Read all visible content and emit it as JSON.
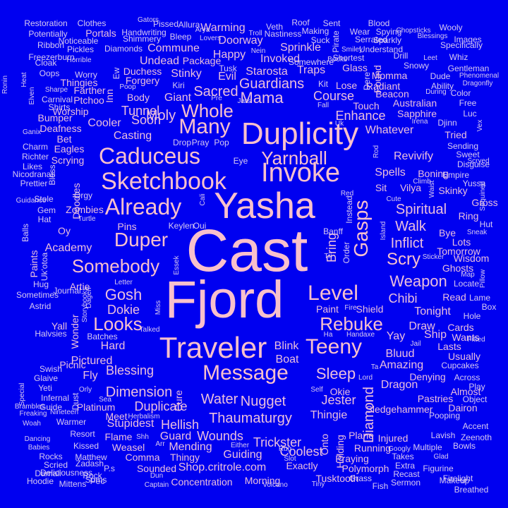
{
  "colors": {
    "background": "#0000f0",
    "word_large": "#f8c0cc",
    "word_medium": "#ebbfdc",
    "word_small": "#d7c8f0"
  },
  "words": [
    "Cast",
    "Fjord",
    "Yasha",
    "Duplicity",
    "Invoke",
    "Traveler",
    "Sketchbook",
    "Caduceus",
    "Message",
    "Teeny",
    "Already",
    "Level",
    "Gasps",
    "Many",
    "Duper",
    "Yarnball",
    "Rebuke",
    "Somebody",
    "Whole",
    "Mama",
    "Scry",
    "Sleep",
    "Looks",
    "Gosh",
    "Weapon",
    "Water",
    "Nugget",
    "Walk",
    "Thaumaturgy",
    "Sacred",
    "Spiritual",
    "Dimension",
    "Duplicate",
    "Guardians",
    "Diamond",
    "Bring",
    "Inflict",
    "Course",
    "Enhance",
    "Jester",
    "Moly",
    "Chibi",
    "Tunnel",
    "Soon",
    "Blessing",
    "Hellish",
    "Dokie",
    "Trickster",
    "Coolest",
    "Wounds",
    "Guard",
    "Stupidest",
    "Mending",
    "Guiding",
    "Shop.critrole.com",
    "Thingie",
    "Whatever",
    "Revivify",
    "Blink",
    "Boat",
    "Spells",
    "Starosta",
    "Stinky",
    "Invoked",
    "Sprinkle",
    "Traps",
    "Happy",
    "Giant",
    "Casting",
    "Cooler",
    "Eye",
    "Doorway",
    "Warming",
    "Undead",
    "Commune",
    "Duchess",
    "Forgery",
    "Body",
    "Yay",
    "Bluud",
    "Amazing",
    "Dragon",
    "Draw",
    "Ship",
    "Tonight",
    "Lasts",
    "Hard",
    "Pictured",
    "Fly",
    "Cure",
    "Okie",
    "Holding",
    "Onto",
    "Plane",
    "Injured",
    "Running",
    "Praying",
    "Polymorph",
    "Tusktooth",
    "Exactly",
    "Thingy",
    "Sounded",
    "Morning",
    "Concentration",
    "Comma",
    "Flame",
    "Meet",
    "Platinum",
    "Weasel",
    "Picnic",
    "Wonder",
    "Artie",
    "Paint",
    "Shield",
    "Kit",
    "Touch",
    "Sapphire",
    "Radiant",
    "Beacon",
    "Australian",
    "Momma",
    "Glass",
    "Found",
    "Lose",
    "Sit",
    "Vilya",
    "Boning",
    "Skinky",
    "Disguise",
    "Sweet",
    "Sending",
    "Tried",
    "Djinn",
    "Empire",
    "Yussa",
    "Gross",
    "Ring",
    "Hut",
    "Bye",
    "Lots",
    "Tomorrow",
    "Wisdom",
    "Ghosts",
    "Locate",
    "Read",
    "Lame",
    "Box",
    "Hole",
    "Cards",
    "Wants",
    "Usually",
    "Cupcakes",
    "Across",
    "Denying",
    "Pastries",
    "Almost",
    "Play",
    "Dairon",
    "Sledgehammer",
    "Pooping",
    "Object",
    "Accent",
    "Lavish",
    "Zeenoth",
    "Bowls",
    "Multiple",
    "Takes",
    "Figurine",
    "Firelight",
    "Breathed",
    "Makeup",
    "Extra",
    "Recast",
    "Sermon",
    "Fish",
    "Grass",
    "Googly",
    "Glad",
    "Academy",
    "Pins",
    "Oy",
    "Zombies",
    "Doodles",
    "Scrying",
    "Eagles",
    "Bet",
    "Deafness",
    "Bumper",
    "Shirts",
    "Carnival",
    "Worship",
    "Ptchoo",
    "Farther",
    "Thingies",
    "Worry",
    "Oops",
    "Cloak",
    "Freezerburn",
    "Pickles",
    "Ribbon",
    "Potentially",
    "Restoration",
    "Clothes",
    "Portals",
    "Noticeable",
    "Diamonds",
    "Handwriting",
    "Shimmery",
    "Gators",
    "Pissed",
    "Allura",
    "Bleep",
    "Lovers",
    "Arya",
    "Tusk",
    "Package",
    "Troll",
    "Nastiness",
    "Veth",
    "Roof",
    "Sent",
    "Making",
    "Suck",
    "Pirate",
    "Wear",
    "Spying",
    "Blood",
    "Serrated",
    "Sparkly",
    "Wooly",
    "Chopsticks",
    "Blessings",
    "Images",
    "Specifically",
    "Whiz",
    "Leet",
    "Gentleman",
    "Phenomenal",
    "Dragonfly",
    "Color",
    "During",
    "Ability",
    "Dude",
    "Snowy",
    "Drill",
    "Understand",
    "Smiley",
    "Shortest",
    "Somewhere",
    "Books",
    "Dere",
    "Free",
    "Luc",
    "Irena",
    "Vex",
    "Scryed",
    "Sequined",
    "Sneak",
    "Sticker",
    "Map",
    "Pillow",
    "Fitted",
    "Climb",
    "Waist",
    "Cute",
    "Island",
    "Rod",
    "Red",
    "Instead",
    "Order",
    "Banff",
    "Tri",
    "Fire",
    "Handaxe",
    "Ha",
    "Jail",
    "Ta",
    "Lord",
    "Self",
    "Slot",
    "Rug",
    "Either",
    "Arr",
    "Shh",
    "Herbalism",
    "Sea",
    "Orly",
    "Dust",
    "Swish",
    "Glaive",
    "Yeti",
    "Infernal",
    "Guide",
    "Brambles",
    "Woah",
    "Freaking",
    "Dancing",
    "Babies",
    "Rocks",
    "Scried",
    "Damali",
    "Hoodie",
    "Mittens",
    "Deliciousness",
    "Zadash",
    "Matthew",
    "Kissed",
    "Resort",
    "Warmer",
    "Nineteen",
    "Special",
    "Journal",
    "Storybooks",
    "Dagen",
    "Miss",
    "Batches",
    "Essek",
    "Letter",
    "Yall",
    "Halvsies",
    "Astrid",
    "Hug",
    "Sometimes",
    "Uk'otoa",
    "Paints",
    "Balls",
    "Hat",
    "Gem",
    "Stole",
    "Guidance",
    "Nicodranas",
    "Prettier",
    "Likes",
    "Charm",
    "Richter",
    "Ganix",
    "Bless",
    "Orgy",
    "Turtle",
    "Keylen",
    "Oui",
    "Cali",
    "Drop",
    "Pray",
    "Pop",
    "Evil",
    "Kiri",
    "Jars",
    "Fall",
    "Uk",
    "Inn",
    "Ew",
    "Poop",
    "Pre",
    "Elven",
    "Ronin",
    "Heat",
    "Sharpe",
    "Horrible",
    "Nein",
    "Captain",
    "Volcano",
    "Tiny",
    "Dun",
    "Rock",
    "P.s",
    "Pec",
    "Sums",
    "Talked",
    "Ulog",
    "Uno",
    "Above",
    "Protect",
    "Accidentally",
    "T"
  ]
}
